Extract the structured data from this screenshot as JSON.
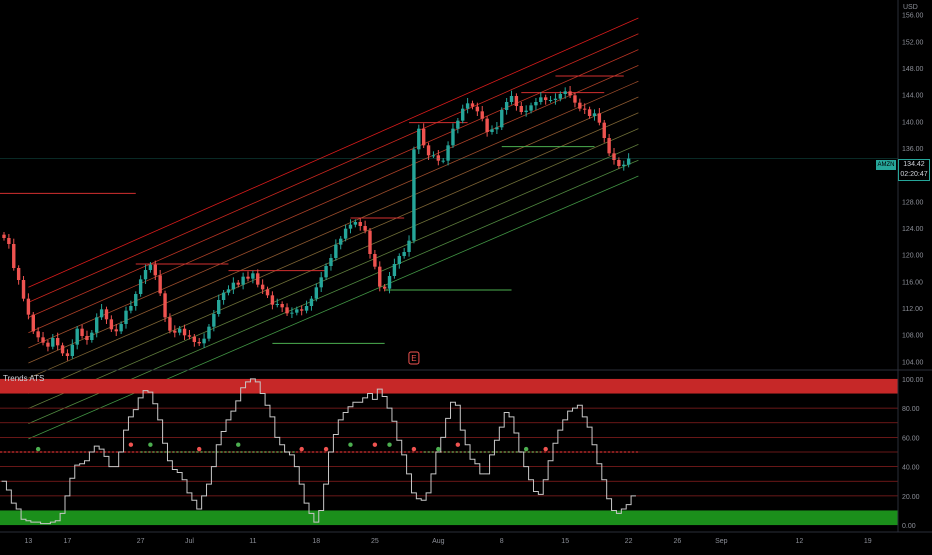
{
  "chart_data": [
    {
      "type": "candlestick",
      "symbol": "AMZN",
      "currency": "USD",
      "last_price": "134.42",
      "countdown": "02:20:47",
      "y_axis_ticks": [
        "156.00",
        "152.00",
        "148.00",
        "144.00",
        "140.00",
        "136.00",
        "132.00",
        "128.00",
        "124.00",
        "120.00",
        "116.00",
        "112.00",
        "108.00",
        "104.00"
      ],
      "ylim": [
        103,
        157
      ],
      "x_axis_ticks": [
        "13",
        "17",
        "27",
        "Jul",
        "11",
        "18",
        "25",
        "Aug",
        "8",
        "15",
        "22",
        "26",
        "Sep",
        "12",
        "19"
      ],
      "earnings_marker": "E",
      "colors": {
        "up": "#26a69a",
        "down": "#ef5350",
        "channel_upper": "#ff2020",
        "channel_lower": "#4caf50",
        "level_red": "#d32f2f",
        "level_green": "#4caf50"
      },
      "closes": [
        122.5,
        121.6,
        118,
        116.2,
        113.4,
        111,
        108.5,
        107.6,
        106.8,
        106.2,
        107.5,
        106.4,
        105.2,
        104.8,
        106.5,
        108.9,
        107.8,
        107.2,
        108.3,
        110.6,
        111.8,
        110.3,
        108.8,
        108.5,
        109.6,
        111.6,
        112.3,
        114.1,
        116.3,
        117.7,
        118.5,
        116.9,
        114.2,
        110.6,
        108.6,
        108.3,
        108.9,
        107.9,
        107.7,
        106.9,
        106.7,
        107.4,
        109.2,
        111.1,
        113.2,
        114.3,
        114.8,
        115.8,
        115.5,
        116.7,
        116.4,
        117.2,
        115.5,
        114.8,
        113.9,
        112.5,
        112.6,
        112.1,
        111.2,
        111.3,
        111.8,
        111.6,
        112.3,
        113.4,
        115.1,
        116.6,
        118.3,
        119.5,
        121.5,
        122.4,
        123.9,
        124.5,
        124.9,
        124.3,
        123.6,
        120.1,
        118.2,
        115.2,
        114.9,
        116.8,
        118.6,
        119.8,
        120.4,
        122.1,
        135.8,
        138.9,
        136.4,
        134.9,
        134.9,
        134.1,
        134.1,
        136.4,
        138.9,
        140.1,
        141.9,
        142.7,
        142.2,
        141.5,
        140.4,
        138.4,
        138.8,
        139.1,
        141.7,
        142.9,
        143.8,
        142.3,
        141.4,
        141.6,
        142.4,
        142.9,
        143.6,
        143.2,
        143.2,
        143.4,
        144.1,
        144.5,
        143.9,
        142.8,
        141.9,
        141.8,
        140.8,
        141.2,
        139.8,
        137.5,
        135.2,
        134.2,
        133.3,
        133.5,
        134.42
      ],
      "channel_upper": [
        [
          0,
          113.5
        ],
        [
          130,
          155.5
        ]
      ],
      "channel_lower": [
        [
          0,
          90.8
        ],
        [
          130,
          131.8
        ]
      ],
      "channel_lines": 10,
      "levels": [
        {
          "color": "red",
          "price": 129.2,
          "x_from": -30,
          "x_to": 27
        },
        {
          "color": "red",
          "price": 118.6,
          "x_from": 27,
          "x_to": 46
        },
        {
          "color": "red",
          "price": 117.6,
          "x_from": 46,
          "x_to": 66
        },
        {
          "color": "red",
          "price": 125.5,
          "x_from": 71,
          "x_to": 82
        },
        {
          "color": "red",
          "price": 139.8,
          "x_from": 83,
          "x_to": 95
        },
        {
          "color": "red",
          "price": 144.3,
          "x_from": 106,
          "x_to": 123
        },
        {
          "color": "red",
          "price": 146.8,
          "x_from": 113,
          "x_to": 127
        },
        {
          "color": "green",
          "price": 106.7,
          "x_from": 55,
          "x_to": 78
        },
        {
          "color": "green",
          "price": 114.7,
          "x_from": 78,
          "x_to": 104
        },
        {
          "color": "green",
          "price": 136.2,
          "x_from": 102,
          "x_to": 121
        }
      ]
    },
    {
      "type": "line",
      "title": "Trends ATS",
      "y_axis_ticks": [
        "100.00",
        "80.00",
        "60.00",
        "40.00",
        "20.00",
        "0.00"
      ],
      "ylim": [
        -2,
        102
      ],
      "zones": [
        {
          "from": 90,
          "to": 100,
          "color": "#c62828"
        },
        {
          "from": 0,
          "to": 10,
          "color": "#1b8f1b"
        }
      ],
      "red_hlines": [
        80,
        70,
        60,
        50,
        40,
        30,
        20
      ],
      "midline": 50,
      "values": [
        30,
        24,
        15,
        11,
        4,
        3,
        2,
        2,
        1,
        1,
        2,
        3,
        8,
        20,
        32,
        41,
        42,
        44,
        50,
        54,
        52,
        47,
        40,
        40,
        50,
        65,
        74,
        79,
        87,
        92,
        91,
        83,
        72,
        56,
        44,
        38,
        36,
        31,
        22,
        17,
        11,
        20,
        28,
        40,
        55,
        64,
        72,
        78,
        85,
        94,
        98,
        100,
        98,
        90,
        82,
        74,
        60,
        55,
        50,
        48,
        40,
        28,
        15,
        8,
        2,
        10,
        28,
        50,
        62,
        72,
        77,
        81,
        84,
        84,
        87,
        90,
        86,
        93,
        88,
        80,
        71,
        58,
        48,
        35,
        22,
        18,
        17,
        22,
        35,
        50,
        60,
        73,
        84,
        82,
        65,
        55,
        45,
        42,
        35,
        35,
        48,
        58,
        67,
        77,
        74,
        63,
        50,
        40,
        31,
        23,
        21,
        31,
        44,
        56,
        65,
        72,
        78,
        80,
        82,
        74,
        67,
        55,
        42,
        31,
        18,
        10,
        8,
        11,
        14,
        20
      ],
      "dots": [
        {
          "i": 7,
          "c": "green"
        },
        {
          "i": 26,
          "c": "red"
        },
        {
          "i": 30,
          "c": "green"
        },
        {
          "i": 40,
          "c": "red"
        },
        {
          "i": 48,
          "c": "green"
        },
        {
          "i": 61,
          "c": "red"
        },
        {
          "i": 66,
          "c": "red"
        },
        {
          "i": 71,
          "c": "green"
        },
        {
          "i": 76,
          "c": "red"
        },
        {
          "i": 79,
          "c": "green"
        },
        {
          "i": 84,
          "c": "red"
        },
        {
          "i": 89,
          "c": "green"
        },
        {
          "i": 93,
          "c": "red"
        },
        {
          "i": 107,
          "c": "green"
        },
        {
          "i": 111,
          "c": "red"
        }
      ]
    }
  ]
}
